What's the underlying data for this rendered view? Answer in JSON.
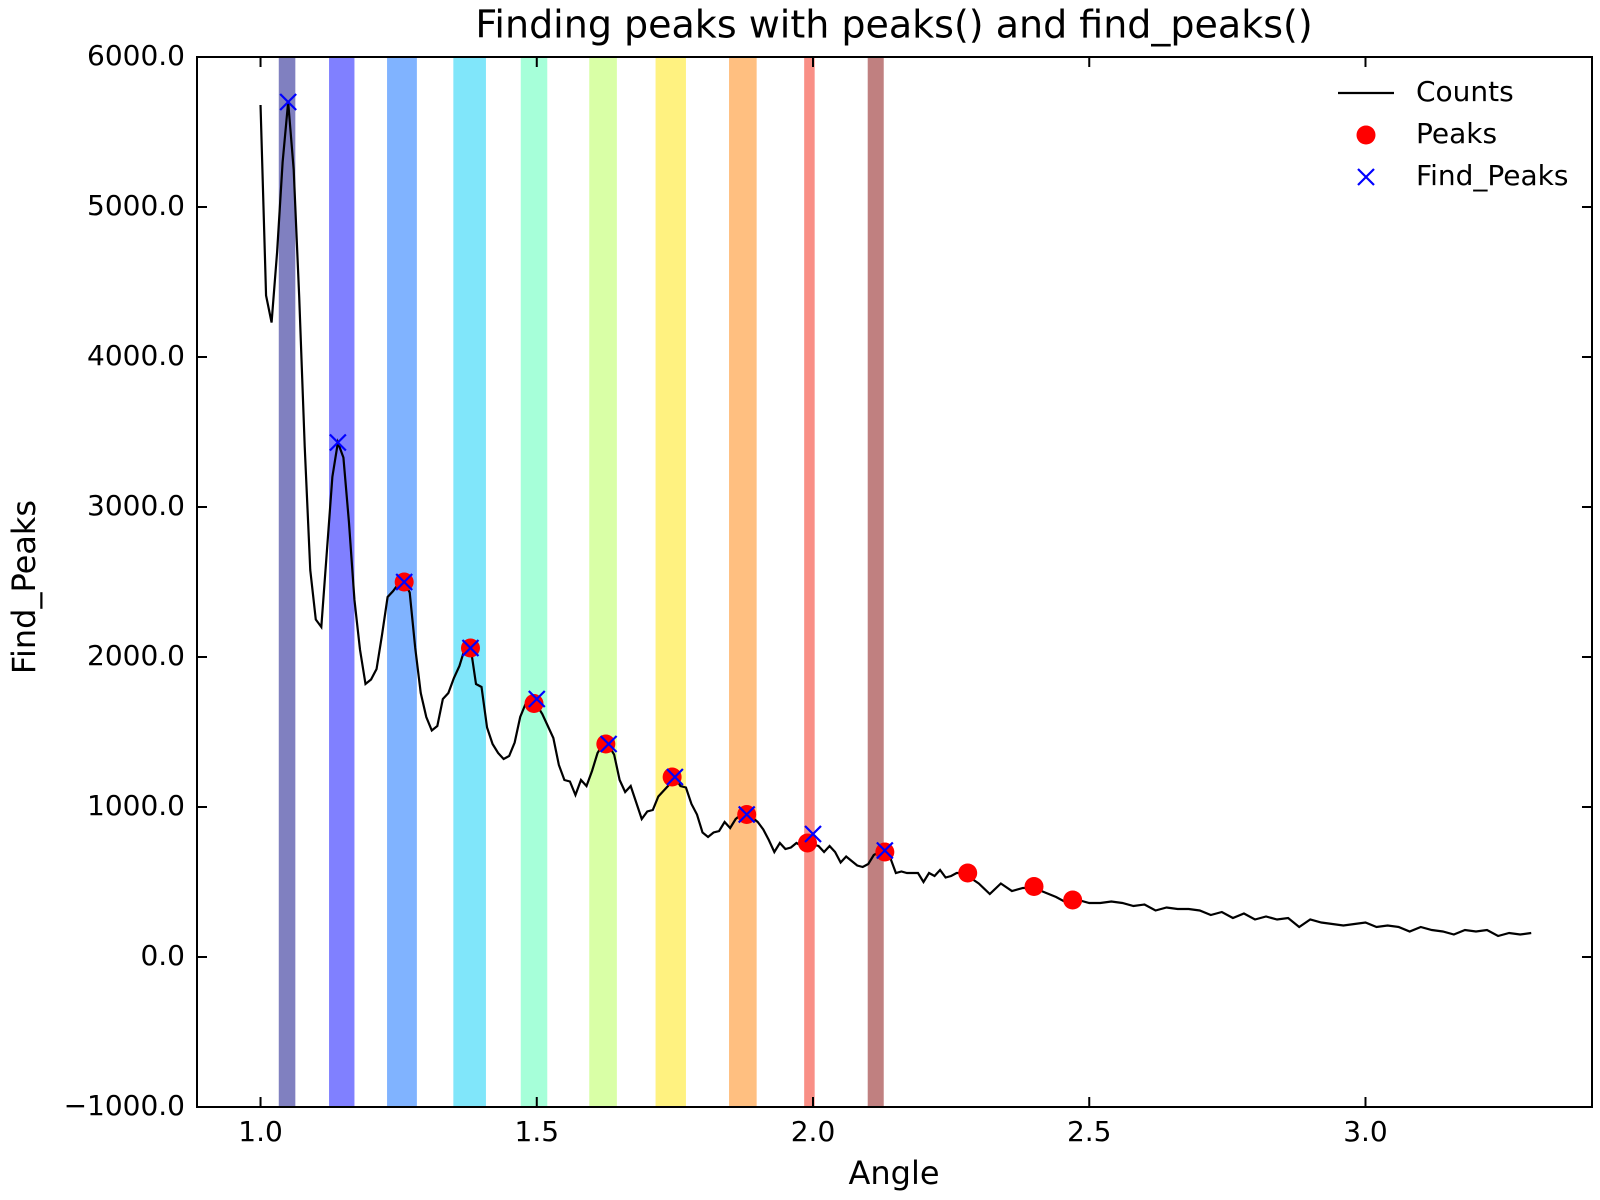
{
  "chart_data": {
    "type": "line",
    "title": "Finding peaks with peaks() and find_peaks()",
    "x_label": "Angle",
    "y_label": "Find_Peaks",
    "xlim": [
      0.885,
      3.41
    ],
    "ylim": [
      -1000,
      6000
    ],
    "xticks": [
      {
        "value": 1,
        "label": "1.0"
      },
      1.5,
      {
        "value": 2,
        "label": "2.0"
      },
      2.5,
      {
        "value": 3,
        "label": "3.0"
      }
    ],
    "yticks": [
      {
        "value": -1000,
        "label": "−1000.0"
      },
      {
        "value": 0,
        "label": "0.0"
      },
      {
        "value": 1000,
        "label": "1000.0"
      },
      {
        "value": 2000,
        "label": "2000.0"
      },
      {
        "value": 3000,
        "label": "3000.0"
      },
      {
        "value": 4000,
        "label": "4000.0"
      },
      {
        "value": 5000,
        "label": "5000.0"
      },
      {
        "value": 6000,
        "label": "6000.0"
      }
    ],
    "grid": false,
    "legend": "upper right",
    "spans": [
      {
        "x": [
          1.033,
          1.063
        ],
        "color": "#8080c0"
      },
      {
        "x": [
          1.124,
          1.17
        ],
        "color": "#8080ff"
      },
      {
        "x": [
          1.229,
          1.283
        ],
        "color": "#80b3ff"
      },
      {
        "x": [
          1.349,
          1.408
        ],
        "color": "#80e6fa"
      },
      {
        "x": [
          1.471,
          1.519
        ],
        "color": "#a6ffd9"
      },
      {
        "x": [
          1.595,
          1.645
        ],
        "color": "#d9ffa6"
      },
      {
        "x": [
          1.715,
          1.77
        ],
        "color": "#fff280"
      },
      {
        "x": [
          1.848,
          1.898
        ],
        "color": "#ffbf80"
      },
      {
        "x": [
          1.984,
          2.003
        ],
        "color": "#f98f86"
      },
      {
        "x": [
          2.099,
          2.128
        ],
        "color": "#c08080"
      }
    ],
    "series": [
      {
        "name": "Counts",
        "color": "#000000",
        "marker": "line",
        "x": [
          1.0,
          1.01,
          1.02,
          1.03,
          1.04,
          1.05,
          1.06,
          1.07,
          1.08,
          1.09,
          1.1,
          1.11,
          1.12,
          1.13,
          1.14,
          1.15,
          1.16,
          1.17,
          1.18,
          1.19,
          1.2,
          1.21,
          1.22,
          1.23,
          1.24,
          1.25,
          1.26,
          1.27,
          1.28,
          1.29,
          1.3,
          1.31,
          1.32,
          1.33,
          1.34,
          1.35,
          1.36,
          1.37,
          1.38,
          1.39,
          1.4,
          1.41,
          1.42,
          1.43,
          1.44,
          1.45,
          1.46,
          1.47,
          1.48,
          1.49,
          1.5,
          1.51,
          1.52,
          1.53,
          1.54,
          1.55,
          1.56,
          1.57,
          1.58,
          1.59,
          1.6,
          1.61,
          1.62,
          1.63,
          1.64,
          1.65,
          1.66,
          1.67,
          1.68,
          1.69,
          1.7,
          1.71,
          1.72,
          1.73,
          1.74,
          1.75,
          1.76,
          1.77,
          1.78,
          1.79,
          1.8,
          1.81,
          1.82,
          1.83,
          1.84,
          1.85,
          1.86,
          1.87,
          1.88,
          1.89,
          1.9,
          1.91,
          1.92,
          1.93,
          1.94,
          1.95,
          1.96,
          1.97,
          1.98,
          1.99,
          2.0,
          2.01,
          2.02,
          2.03,
          2.04,
          2.05,
          2.06,
          2.07,
          2.08,
          2.09,
          2.1,
          2.11,
          2.12,
          2.13,
          2.14,
          2.15,
          2.16,
          2.17,
          2.18,
          2.19,
          2.2,
          2.21,
          2.22,
          2.23,
          2.24,
          2.25,
          2.26,
          2.27,
          2.28,
          2.3,
          2.32,
          2.34,
          2.36,
          2.38,
          2.4,
          2.42,
          2.44,
          2.46,
          2.48,
          2.5,
          2.52,
          2.54,
          2.56,
          2.58,
          2.6,
          2.62,
          2.64,
          2.66,
          2.68,
          2.7,
          2.72,
          2.74,
          2.76,
          2.78,
          2.8,
          2.82,
          2.84,
          2.86,
          2.88,
          2.9,
          2.92,
          2.94,
          2.96,
          2.98,
          3.0,
          3.02,
          3.04,
          3.06,
          3.08,
          3.1,
          3.12,
          3.14,
          3.16,
          3.18,
          3.2,
          3.22,
          3.24,
          3.26,
          3.28,
          3.3
        ],
        "values": [
          5680,
          4410,
          4230,
          4700,
          5300,
          5700,
          5250,
          4400,
          3400,
          2580,
          2250,
          2200,
          2700,
          3200,
          3430,
          3330,
          2900,
          2380,
          2050,
          1820,
          1850,
          1920,
          2150,
          2400,
          2440,
          2490,
          2500,
          2430,
          2060,
          1760,
          1600,
          1510,
          1540,
          1720,
          1760,
          1860,
          1940,
          2060,
          2070,
          1820,
          1800,
          1530,
          1420,
          1360,
          1320,
          1340,
          1430,
          1600,
          1690,
          1720,
          1680,
          1620,
          1540,
          1460,
          1280,
          1180,
          1170,
          1080,
          1180,
          1140,
          1240,
          1360,
          1420,
          1410,
          1350,
          1180,
          1100,
          1140,
          1030,
          920,
          970,
          980,
          1070,
          1110,
          1150,
          1200,
          1140,
          1130,
          1020,
          950,
          830,
          800,
          830,
          840,
          900,
          860,
          920,
          950,
          960,
          930,
          900,
          850,
          780,
          700,
          760,
          720,
          730,
          760,
          740,
          770,
          750,
          740,
          700,
          740,
          700,
          630,
          670,
          640,
          610,
          600,
          620,
          680,
          700,
          690,
          660,
          560,
          570,
          560,
          560,
          560,
          500,
          560,
          540,
          580,
          530,
          540,
          560,
          560,
          540,
          490,
          420,
          490,
          440,
          460,
          460,
          430,
          400,
          360,
          380,
          360,
          360,
          370,
          360,
          340,
          350,
          310,
          330,
          320,
          320,
          310,
          280,
          300,
          260,
          290,
          250,
          270,
          250,
          260,
          200,
          250,
          230,
          220,
          210,
          220,
          230,
          200,
          210,
          200,
          170,
          200,
          180,
          170,
          150,
          180,
          170,
          180,
          140,
          160,
          150,
          160
        ]
      },
      {
        "name": "Peaks",
        "color": "#ff0000",
        "marker": "circle",
        "x": [
          1.26,
          1.38,
          1.495,
          1.625,
          1.745,
          1.88,
          1.99,
          2.13,
          2.28,
          2.4,
          2.47
        ],
        "values": [
          2500,
          2060,
          1690,
          1420,
          1200,
          950,
          760,
          700,
          560,
          470,
          380
        ]
      },
      {
        "name": "Find_Peaks",
        "color": "#0000ff",
        "marker": "x",
        "x": [
          1.05,
          1.14,
          1.26,
          1.38,
          1.5,
          1.63,
          1.75,
          1.88,
          2.0,
          2.13
        ],
        "values": [
          5700,
          3430,
          2500,
          2060,
          1720,
          1420,
          1200,
          950,
          820,
          710
        ]
      }
    ]
  }
}
